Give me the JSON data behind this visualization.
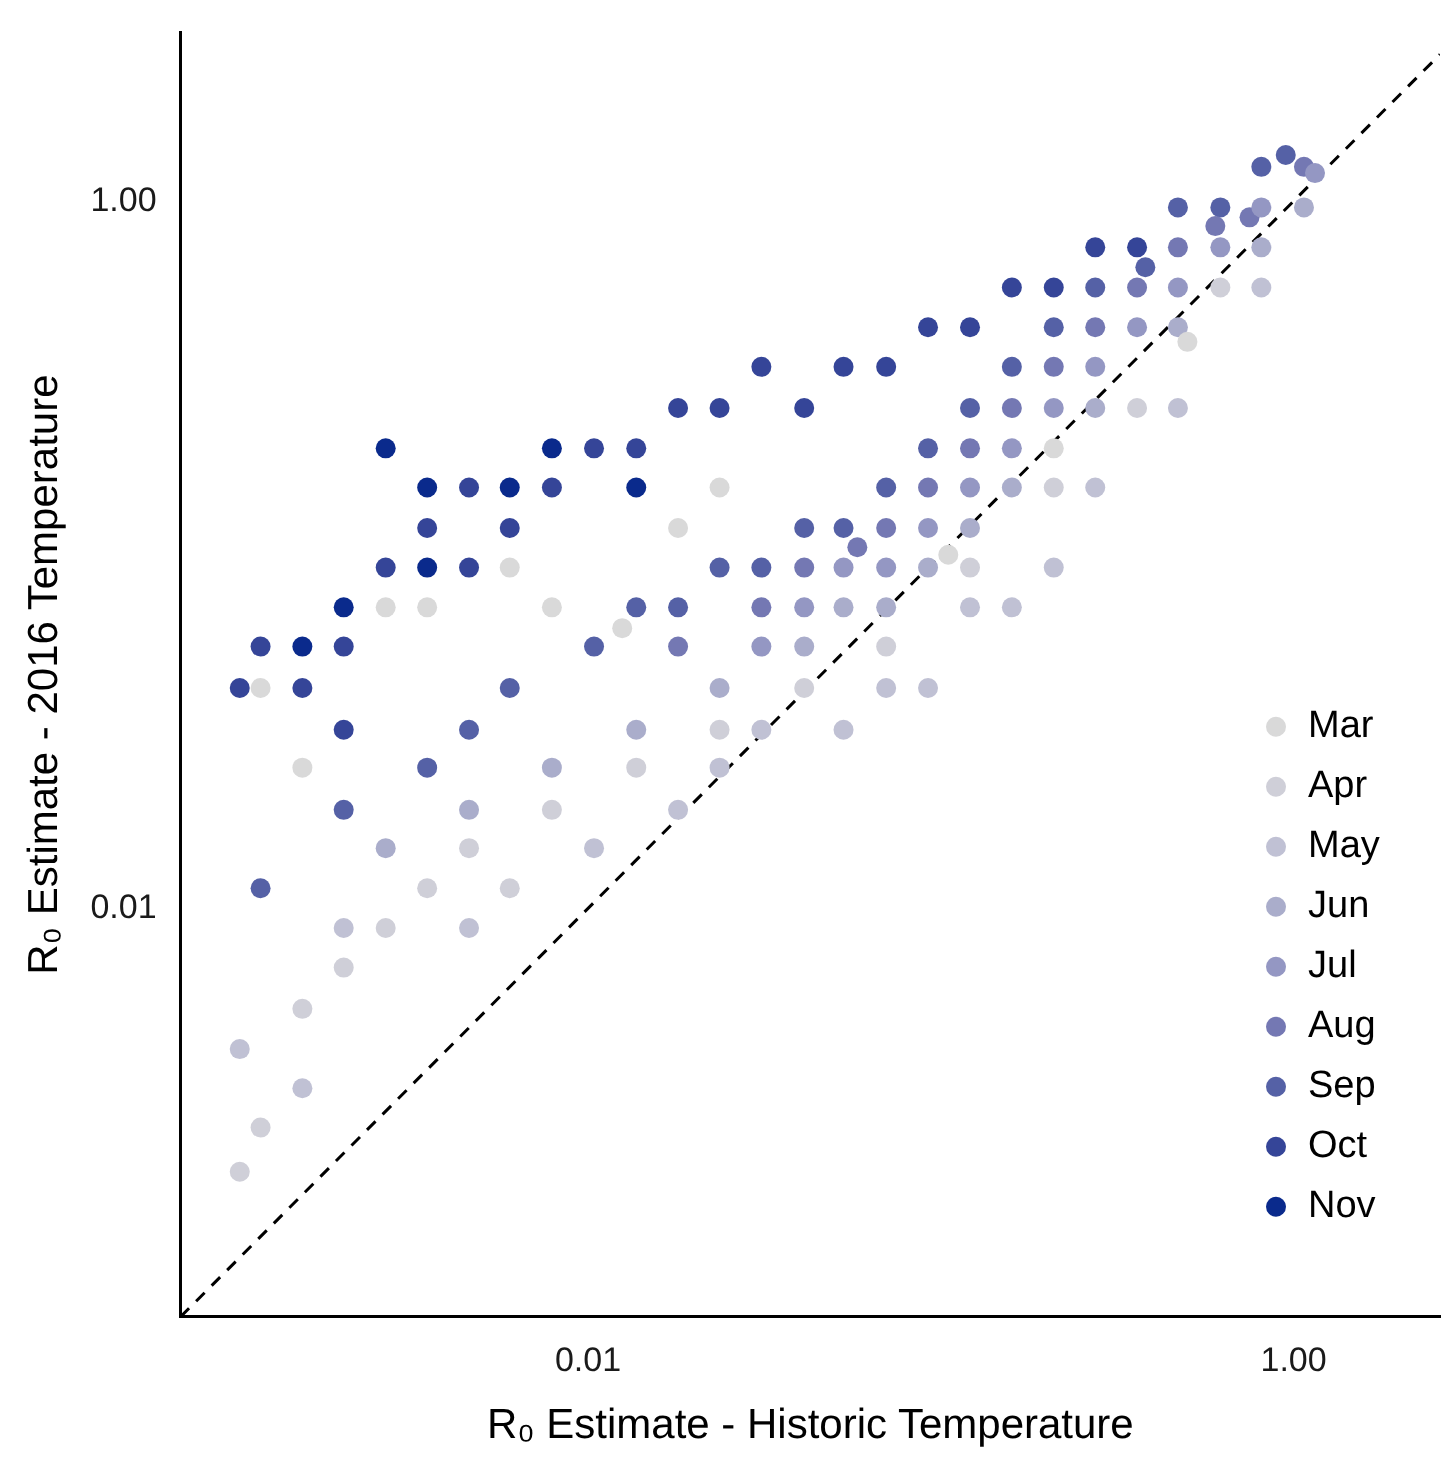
{
  "chart_data": {
    "type": "scatter",
    "xlabel": "R₀ Estimate - Historic Temperature",
    "ylabel": "R₀ Estimate - 2016 Temperature",
    "log": "xy",
    "xlim": [
      0.0007,
      2.6
    ],
    "ylim": [
      0.0007,
      3
    ],
    "xticks": [
      0.01,
      {
        "value": 1,
        "label": "1.00"
      }
    ],
    "yticks": [
      0.01,
      {
        "value": 1,
        "label": "1.00"
      }
    ],
    "grid": false,
    "legend": "bottom right",
    "marker": "circle",
    "series": [
      {
        "name": "Mar",
        "color": "#d9d9d9",
        "x": [
          0.00118,
          0.00155,
          0.00267,
          0.0035,
          0.006,
          0.0079,
          0.0125,
          0.018,
          0.0236,
          0.105,
          0.209,
          0.5
        ],
        "values": [
          0.042,
          0.025,
          0.071,
          0.071,
          0.092,
          0.071,
          0.062,
          0.119,
          0.155,
          0.1,
          0.2,
          0.4
        ]
      },
      {
        "name": "Apr",
        "color": "#cfcfd8",
        "x": [
          0.00103,
          0.00118,
          0.00155,
          0.00203,
          0.00267,
          0.0035,
          0.0046,
          0.006,
          0.0079,
          0.0137,
          0.0236,
          0.041,
          0.07,
          0.121,
          0.209,
          0.36,
          0.62
        ],
        "values": [
          0.0018,
          0.0024,
          0.0052,
          0.0068,
          0.0088,
          0.0114,
          0.0148,
          0.0114,
          0.019,
          0.025,
          0.032,
          0.042,
          0.055,
          0.092,
          0.155,
          0.26,
          0.57
        ]
      },
      {
        "name": "May",
        "color": "#c0c1d4",
        "x": [
          0.00103,
          0.00155,
          0.00203,
          0.0046,
          0.0104,
          0.018,
          0.0236,
          0.031,
          0.053,
          0.07,
          0.092,
          0.121,
          0.159,
          0.209,
          0.274,
          0.47,
          0.81
        ],
        "values": [
          0.004,
          0.0031,
          0.0088,
          0.0088,
          0.0148,
          0.019,
          0.025,
          0.032,
          0.032,
          0.042,
          0.042,
          0.071,
          0.071,
          0.092,
          0.155,
          0.26,
          0.57
        ]
      },
      {
        "name": "Jun",
        "color": "#aaadcb",
        "x": [
          0.00267,
          0.0046,
          0.0079,
          0.0137,
          0.0236,
          0.041,
          0.053,
          0.07,
          0.092,
          0.121,
          0.159,
          0.274,
          0.47,
          0.81,
          1.07
        ],
        "values": [
          0.0148,
          0.019,
          0.025,
          0.032,
          0.042,
          0.055,
          0.071,
          0.071,
          0.092,
          0.119,
          0.155,
          0.26,
          0.44,
          0.74,
          0.96
        ]
      },
      {
        "name": "Jul",
        "color": "#9497c3",
        "x": [
          0.031,
          0.041,
          0.053,
          0.07,
          0.092,
          0.121,
          0.159,
          0.209,
          0.274,
          0.36,
          0.47,
          0.62,
          0.81,
          1.15
        ],
        "values": [
          0.055,
          0.071,
          0.092,
          0.092,
          0.119,
          0.155,
          0.2,
          0.26,
          0.34,
          0.44,
          0.57,
          0.74,
          0.96,
          1.2
        ]
      },
      {
        "name": "Aug",
        "color": "#7478b3",
        "x": [
          0.018,
          0.031,
          0.041,
          0.058,
          0.07,
          0.092,
          0.121,
          0.159,
          0.209,
          0.274,
          0.36,
          0.47,
          0.6,
          0.75,
          1.07
        ],
        "values": [
          0.055,
          0.071,
          0.092,
          0.105,
          0.119,
          0.155,
          0.2,
          0.26,
          0.34,
          0.44,
          0.57,
          0.74,
          0.85,
          0.9,
          1.25
        ]
      },
      {
        "name": "Sep",
        "color": "#5561a6",
        "x": [
          0.00118,
          0.00203,
          0.0035,
          0.0046,
          0.006,
          0.0104,
          0.0137,
          0.018,
          0.0236,
          0.031,
          0.041,
          0.053,
          0.07,
          0.092,
          0.121,
          0.159,
          0.209,
          0.274,
          0.38,
          0.47,
          0.62,
          0.81,
          0.95
        ],
        "values": [
          0.0114,
          0.019,
          0.025,
          0.032,
          0.042,
          0.055,
          0.071,
          0.071,
          0.092,
          0.092,
          0.119,
          0.119,
          0.155,
          0.2,
          0.26,
          0.34,
          0.44,
          0.57,
          0.65,
          0.96,
          0.96,
          1.25,
          1.35
        ]
      },
      {
        "name": "Oct",
        "color": "#354598",
        "x": [
          0.00103,
          0.00118,
          0.00155,
          0.00203,
          0.00203,
          0.00267,
          0.0035,
          0.0046,
          0.0046,
          0.006,
          0.0079,
          0.0104,
          0.0137,
          0.018,
          0.0236,
          0.031,
          0.041,
          0.053,
          0.07,
          0.092,
          0.121,
          0.159,
          0.209,
          0.274,
          0.36
        ],
        "values": [
          0.042,
          0.055,
          0.042,
          0.055,
          0.032,
          0.092,
          0.119,
          0.092,
          0.155,
          0.119,
          0.155,
          0.2,
          0.2,
          0.26,
          0.26,
          0.34,
          0.26,
          0.34,
          0.34,
          0.44,
          0.44,
          0.57,
          0.57,
          0.74,
          0.74
        ]
      },
      {
        "name": "Nov",
        "color": "#0a2a8c",
        "x": [
          0.00155,
          0.00203,
          0.00267,
          0.0035,
          0.0035,
          0.006,
          0.0079,
          0.0137
        ],
        "values": [
          0.055,
          0.071,
          0.2,
          0.155,
          0.092,
          0.155,
          0.2,
          0.155
        ]
      },
      {
        "type": "line",
        "color": "#000000",
        "line_style": "dashed",
        "marker": "none",
        "x": [
          0.0007,
          2.6
        ],
        "values": [
          0.0007,
          2.6
        ]
      }
    ]
  }
}
